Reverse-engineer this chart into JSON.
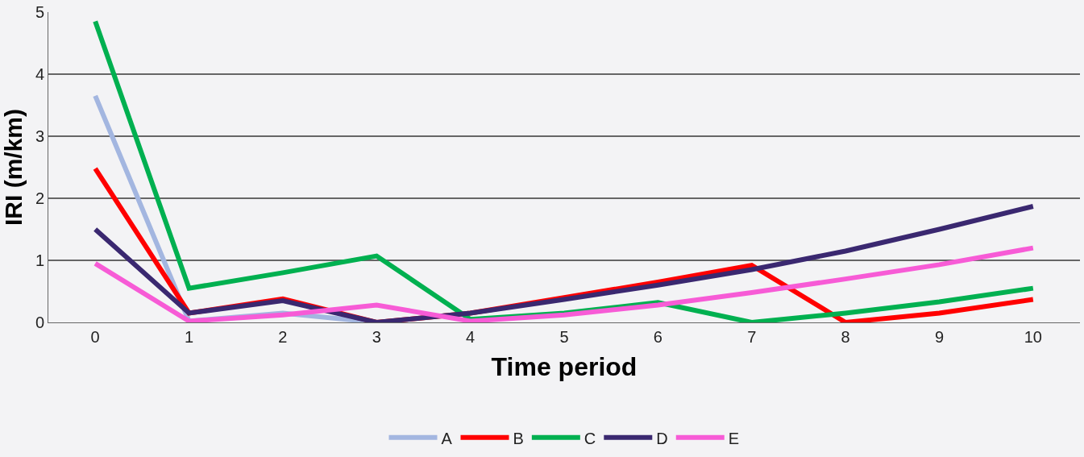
{
  "chart_data": {
    "type": "line",
    "xlabel": "Time period",
    "ylabel": "IRI (m/km)",
    "categories": [
      "0",
      "1",
      "2",
      "3",
      "4",
      "5",
      "6",
      "7",
      "8",
      "9",
      "10"
    ],
    "series": [
      {
        "name": "A",
        "color": "#a3b6e0",
        "values": [
          3.65,
          0.02,
          0.15,
          0.0,
          null,
          null,
          null,
          null,
          null,
          null,
          null
        ]
      },
      {
        "name": "B",
        "color": "#ff0000",
        "values": [
          2.48,
          0.15,
          0.38,
          0.0,
          0.15,
          0.4,
          0.65,
          0.92,
          0.0,
          0.15,
          0.37
        ]
      },
      {
        "name": "C",
        "color": "#00b050",
        "values": [
          4.85,
          0.55,
          0.8,
          1.07,
          0.05,
          0.15,
          0.32,
          0.0,
          0.15,
          0.33,
          0.55
        ]
      },
      {
        "name": "D",
        "color": "#3a2870",
        "values": [
          1.5,
          0.15,
          0.35,
          0.0,
          0.15,
          0.37,
          0.6,
          0.85,
          1.15,
          1.5,
          1.87
        ]
      },
      {
        "name": "E",
        "color": "#f75bd6",
        "values": [
          0.95,
          0.02,
          0.12,
          0.28,
          0.02,
          0.12,
          0.28,
          0.48,
          0.7,
          0.93,
          1.2
        ]
      }
    ],
    "ylim": [
      0,
      5
    ],
    "yticks": [
      0,
      1,
      2,
      3,
      4,
      5
    ],
    "grid": "y",
    "legend": "bottom",
    "marker": "none",
    "line_style": "solid"
  }
}
